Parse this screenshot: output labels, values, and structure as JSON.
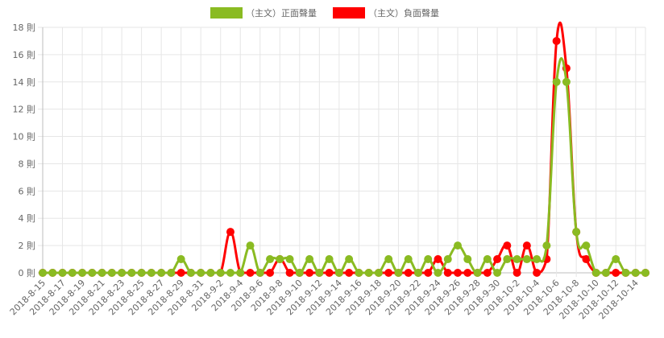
{
  "chart_data": {
    "type": "line",
    "title": "",
    "xlabel": "",
    "ylabel": "",
    "y_unit": "則",
    "ylim": [
      0,
      18
    ],
    "y_ticks": [
      "0 則",
      "2 則",
      "4 則",
      "6 則",
      "8 則",
      "10 則",
      "12 則",
      "14 則",
      "16 則",
      "18 則"
    ],
    "grid": true,
    "legend_position": "top-center",
    "x": [
      "2018-8-15",
      "2018-8-16",
      "2018-8-17",
      "2018-8-18",
      "2018-8-19",
      "2018-8-20",
      "2018-8-21",
      "2018-8-22",
      "2018-8-23",
      "2018-8-24",
      "2018-8-25",
      "2018-8-26",
      "2018-8-27",
      "2018-8-28",
      "2018-8-29",
      "2018-8-30",
      "2018-8-31",
      "2018-9-1",
      "2018-9-2",
      "2018-9-3",
      "2018-9-4",
      "2018-9-5",
      "2018-9-6",
      "2018-9-7",
      "2018-9-8",
      "2018-9-9",
      "2018-9-10",
      "2018-9-11",
      "2018-9-12",
      "2018-9-13",
      "2018-9-14",
      "2018-9-15",
      "2018-9-16",
      "2018-9-17",
      "2018-9-18",
      "2018-9-19",
      "2018-9-20",
      "2018-9-21",
      "2018-9-22",
      "2018-9-23",
      "2018-9-24",
      "2018-9-25",
      "2018-9-26",
      "2018-9-27",
      "2018-9-28",
      "2018-9-29",
      "2018-9-30",
      "2018-10-1",
      "2018-10-2",
      "2018-10-3",
      "2018-10-4",
      "2018-10-5",
      "2018-10-6",
      "2018-10-7",
      "2018-10-8",
      "2018-10-9",
      "2018-10-10",
      "2018-10-11",
      "2018-10-12",
      "2018-10-13",
      "2018-10-14",
      "2018-10-15"
    ],
    "x_tick_labels": [
      "2018-8-15",
      "2018-8-17",
      "2018-8-19",
      "2018-8-21",
      "2018-8-23",
      "2018-8-25",
      "2018-8-27",
      "2018-8-29",
      "2018-8-31",
      "2018-9-2",
      "2018-9-4",
      "2018-9-6",
      "2018-9-8",
      "2018-9-10",
      "2018-9-12",
      "2018-9-14",
      "2018-9-16",
      "2018-9-18",
      "2018-9-20",
      "2018-9-22",
      "2018-9-24",
      "2018-9-26",
      "2018-9-28",
      "2018-9-30",
      "2018-10-2",
      "2018-10-4",
      "2018-10-6",
      "2018-10-8",
      "2018-10-10",
      "2018-10-12",
      "2018-10-14"
    ],
    "series": [
      {
        "name": "（主文）正面聲量",
        "color": "#8abb22",
        "values": [
          0,
          0,
          0,
          0,
          0,
          0,
          0,
          0,
          0,
          0,
          0,
          0,
          0,
          0,
          1,
          0,
          0,
          0,
          0,
          0,
          0,
          2,
          0,
          1,
          1,
          1,
          0,
          1,
          0,
          1,
          0,
          1,
          0,
          0,
          0,
          1,
          0,
          1,
          0,
          1,
          0,
          1,
          2,
          1,
          0,
          1,
          0,
          1,
          1,
          1,
          1,
          2,
          14,
          14,
          3,
          2,
          0,
          0,
          1,
          0,
          0,
          0
        ]
      },
      {
        "name": "（主文）負面聲量",
        "color": "#ff0000",
        "values": [
          0,
          0,
          0,
          0,
          0,
          0,
          0,
          0,
          0,
          0,
          0,
          0,
          0,
          0,
          0,
          0,
          0,
          0,
          0,
          3,
          0,
          0,
          0,
          0,
          1,
          0,
          0,
          0,
          0,
          0,
          0,
          0,
          0,
          0,
          0,
          0,
          0,
          0,
          0,
          0,
          1,
          0,
          0,
          0,
          0,
          0,
          1,
          2,
          0,
          2,
          0,
          1,
          17,
          15,
          3,
          1,
          0,
          0,
          0,
          0,
          0,
          0
        ]
      }
    ]
  }
}
